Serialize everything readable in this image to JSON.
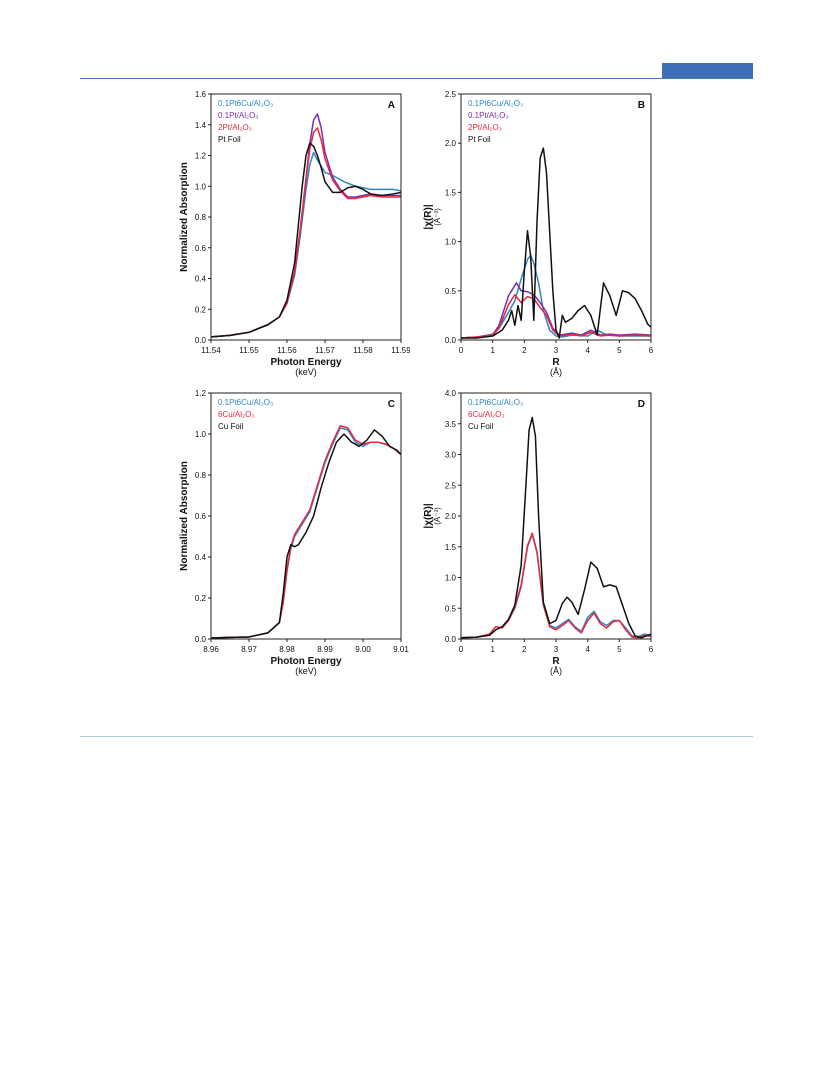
{
  "colors": {
    "pt_cu": "#2f86c8",
    "pt01": "#7a2fa8",
    "pt2": "#e8283a",
    "foil": "#111111",
    "cu6": "#e8283a",
    "accent": "#3f6fb7"
  },
  "chart_data": [
    {
      "id": "A",
      "type": "line",
      "panel_label": "A",
      "xlabel": "Photon Energy",
      "xunit": "(keV)",
      "ylabel": "Normalized Absorption",
      "xlim": [
        11.54,
        11.59
      ],
      "ylim": [
        0,
        1.6
      ],
      "xticks": [
        11.54,
        11.55,
        11.56,
        11.57,
        11.58,
        11.59
      ],
      "yticks": [
        0.0,
        0.2,
        0.4,
        0.6,
        0.8,
        1.0,
        1.2,
        1.4,
        1.6
      ],
      "xtick_labels": [
        "11.54",
        "11.55",
        "11.56",
        "11.57",
        "11.58",
        "11.59"
      ],
      "ytick_labels": [
        "0.0",
        "0.2",
        "0.4",
        "0.6",
        "0.8",
        "1.0",
        "1.2",
        "1.4",
        "1.6"
      ],
      "legend": [
        {
          "text": "0.1Pt6Cu/Al₂O₃",
          "colorKey": "pt_cu"
        },
        {
          "text": "0.1Pt/Al₂O₃",
          "colorKey": "pt01"
        },
        {
          "text": "2Pt/Al₂O₃",
          "colorKey": "pt2"
        },
        {
          "text": "Pt Foil",
          "colorKey": "foil"
        }
      ],
      "series": [
        {
          "name": "0.1Pt6Cu/Al₂O₃",
          "colorKey": "pt_cu",
          "x": [
            11.54,
            11.545,
            11.55,
            11.555,
            11.558,
            11.56,
            11.562,
            11.5635,
            11.565,
            11.566,
            11.567,
            11.568,
            11.57,
            11.572,
            11.575,
            11.578,
            11.58,
            11.582,
            11.585,
            11.588,
            11.59
          ],
          "y": [
            0.02,
            0.03,
            0.05,
            0.1,
            0.15,
            0.24,
            0.42,
            0.68,
            0.98,
            1.14,
            1.22,
            1.17,
            1.09,
            1.07,
            1.03,
            1.0,
            0.99,
            0.98,
            0.98,
            0.98,
            0.97
          ]
        },
        {
          "name": "0.1Pt/Al₂O₃",
          "colorKey": "pt01",
          "x": [
            11.54,
            11.545,
            11.55,
            11.555,
            11.558,
            11.56,
            11.562,
            11.5635,
            11.565,
            11.566,
            11.567,
            11.568,
            11.569,
            11.57,
            11.572,
            11.574,
            11.576,
            11.578,
            11.58,
            11.582,
            11.585,
            11.588,
            11.59
          ],
          "y": [
            0.02,
            0.03,
            0.05,
            0.1,
            0.15,
            0.24,
            0.44,
            0.72,
            1.05,
            1.28,
            1.43,
            1.47,
            1.38,
            1.22,
            1.06,
            0.98,
            0.93,
            0.93,
            0.94,
            0.95,
            0.94,
            0.94,
            0.94
          ]
        },
        {
          "name": "2Pt/Al₂O₃",
          "colorKey": "pt2",
          "x": [
            11.54,
            11.545,
            11.55,
            11.555,
            11.558,
            11.56,
            11.562,
            11.5635,
            11.565,
            11.566,
            11.567,
            11.568,
            11.569,
            11.57,
            11.572,
            11.574,
            11.576,
            11.578,
            11.58,
            11.582,
            11.585,
            11.588,
            11.59
          ],
          "y": [
            0.02,
            0.03,
            0.05,
            0.1,
            0.15,
            0.24,
            0.44,
            0.72,
            1.04,
            1.24,
            1.35,
            1.38,
            1.3,
            1.18,
            1.04,
            0.97,
            0.92,
            0.92,
            0.93,
            0.94,
            0.93,
            0.93,
            0.93
          ]
        },
        {
          "name": "Pt Foil",
          "colorKey": "foil",
          "x": [
            11.54,
            11.545,
            11.55,
            11.555,
            11.558,
            11.56,
            11.562,
            11.563,
            11.564,
            11.565,
            11.566,
            11.567,
            11.568,
            11.569,
            11.57,
            11.572,
            11.574,
            11.576,
            11.578,
            11.58,
            11.582,
            11.585,
            11.588,
            11.59
          ],
          "y": [
            0.02,
            0.03,
            0.05,
            0.1,
            0.15,
            0.26,
            0.5,
            0.75,
            1.0,
            1.2,
            1.28,
            1.26,
            1.2,
            1.12,
            1.03,
            0.96,
            0.96,
            0.99,
            1.0,
            0.98,
            0.95,
            0.94,
            0.95,
            0.96
          ]
        }
      ]
    },
    {
      "id": "B",
      "type": "line",
      "panel_label": "B",
      "xlabel": "R",
      "xunit": "(Å)",
      "ylabel": "|χ(R)|",
      "yunit": "(Å⁻³)",
      "xlim": [
        0,
        6
      ],
      "ylim": [
        0,
        2.5
      ],
      "xticks": [
        0,
        1,
        2,
        3,
        4,
        5,
        6
      ],
      "yticks": [
        0.0,
        0.5,
        1.0,
        1.5,
        2.0,
        2.5
      ],
      "xtick_labels": [
        "0",
        "1",
        "2",
        "3",
        "4",
        "5",
        "6"
      ],
      "ytick_labels": [
        "0.0",
        "0.5",
        "1.0",
        "1.5",
        "2.0",
        "2.5"
      ],
      "legend": [
        {
          "text": "0.1Pt6Cu/Al₂O₃",
          "colorKey": "pt_cu"
        },
        {
          "text": "0.1Pt/Al₂O₃",
          "colorKey": "pt01"
        },
        {
          "text": "2Pt/Al₂O₃",
          "colorKey": "pt2"
        },
        {
          "text": "Pt Foil",
          "colorKey": "foil"
        }
      ],
      "series": [
        {
          "name": "0.1Pt6Cu/Al₂O₃",
          "colorKey": "pt_cu",
          "x": [
            0,
            0.5,
            1.0,
            1.2,
            1.5,
            1.7,
            1.9,
            2.1,
            2.2,
            2.3,
            2.45,
            2.6,
            2.8,
            3.0,
            3.2,
            3.5,
            4.0,
            4.3,
            4.6,
            5.0,
            5.5,
            6.0
          ],
          "y": [
            0.02,
            0.03,
            0.06,
            0.12,
            0.28,
            0.4,
            0.62,
            0.82,
            0.86,
            0.78,
            0.58,
            0.3,
            0.1,
            0.04,
            0.03,
            0.05,
            0.04,
            0.1,
            0.05,
            0.04,
            0.04,
            0.04
          ]
        },
        {
          "name": "0.1Pt/Al₂O₃",
          "colorKey": "pt01",
          "x": [
            0,
            0.5,
            1.0,
            1.2,
            1.5,
            1.75,
            1.9,
            2.1,
            2.3,
            2.5,
            2.7,
            2.9,
            3.1,
            3.3,
            3.5,
            3.8,
            4.1,
            4.4,
            4.7,
            5.0,
            5.5,
            6.0
          ],
          "y": [
            0.02,
            0.03,
            0.05,
            0.15,
            0.45,
            0.58,
            0.5,
            0.49,
            0.46,
            0.38,
            0.28,
            0.12,
            0.05,
            0.06,
            0.07,
            0.05,
            0.1,
            0.05,
            0.06,
            0.05,
            0.06,
            0.05
          ]
        },
        {
          "name": "2Pt/Al₂O₃",
          "colorKey": "pt2",
          "x": [
            0,
            0.5,
            1.0,
            1.2,
            1.5,
            1.7,
            1.9,
            2.1,
            2.3,
            2.5,
            2.7,
            2.9,
            3.1,
            3.3,
            3.5,
            3.8,
            4.1,
            4.4,
            4.7,
            5.0,
            5.5,
            6.0
          ],
          "y": [
            0.02,
            0.03,
            0.05,
            0.12,
            0.36,
            0.46,
            0.38,
            0.44,
            0.42,
            0.33,
            0.25,
            0.1,
            0.04,
            0.05,
            0.06,
            0.04,
            0.08,
            0.04,
            0.05,
            0.04,
            0.05,
            0.04
          ]
        },
        {
          "name": "Pt Foil",
          "colorKey": "foil",
          "x": [
            0,
            0.5,
            1.0,
            1.3,
            1.5,
            1.6,
            1.7,
            1.8,
            1.9,
            2.0,
            2.1,
            2.2,
            2.3,
            2.4,
            2.5,
            2.6,
            2.7,
            2.8,
            2.9,
            3.0,
            3.1,
            3.2,
            3.3,
            3.5,
            3.7,
            3.9,
            4.1,
            4.3,
            4.5,
            4.7,
            4.9,
            5.1,
            5.3,
            5.5,
            5.7,
            5.9,
            6.0
          ],
          "y": [
            0.02,
            0.02,
            0.04,
            0.1,
            0.2,
            0.3,
            0.15,
            0.35,
            0.2,
            0.7,
            1.11,
            0.85,
            0.2,
            1.2,
            1.85,
            1.95,
            1.7,
            1.1,
            0.5,
            0.1,
            0.02,
            0.25,
            0.18,
            0.22,
            0.3,
            0.35,
            0.25,
            0.05,
            0.58,
            0.45,
            0.25,
            0.5,
            0.48,
            0.42,
            0.3,
            0.16,
            0.13
          ]
        }
      ]
    },
    {
      "id": "C",
      "type": "line",
      "panel_label": "C",
      "xlabel": "Photon Energy",
      "xunit": "(keV)",
      "ylabel": "Normalized Absorption",
      "xlim": [
        8.96,
        9.01
      ],
      "ylim": [
        0,
        1.2
      ],
      "xticks": [
        8.96,
        8.97,
        8.98,
        8.99,
        9.0,
        9.01
      ],
      "yticks": [
        0.0,
        0.2,
        0.4,
        0.6,
        0.8,
        1.0,
        1.2
      ],
      "xtick_labels": [
        "8.96",
        "8.97",
        "8.98",
        "8.99",
        "9.00",
        "9.01"
      ],
      "ytick_labels": [
        "0.0",
        "0.2",
        "0.4",
        "0.6",
        "0.8",
        "1.0",
        "1.2"
      ],
      "legend": [
        {
          "text": "0.1Pt6Cu/Al₂O₃",
          "colorKey": "pt_cu"
        },
        {
          "text": "6Cu/Al₂O₃",
          "colorKey": "cu6"
        },
        {
          "text": "Cu Foil",
          "colorKey": "foil"
        }
      ],
      "series": [
        {
          "name": "0.1Pt6Cu/Al₂O₃",
          "colorKey": "pt_cu",
          "x": [
            8.96,
            8.965,
            8.97,
            8.975,
            8.978,
            8.979,
            8.98,
            8.981,
            8.982,
            8.984,
            8.986,
            8.988,
            8.99,
            8.992,
            8.994,
            8.996,
            8.998,
            9.0,
            9.002,
            9.004,
            9.006,
            9.008,
            9.01
          ],
          "y": [
            0.005,
            0.008,
            0.01,
            0.03,
            0.08,
            0.18,
            0.33,
            0.44,
            0.5,
            0.56,
            0.62,
            0.74,
            0.86,
            0.95,
            1.03,
            1.02,
            0.96,
            0.94,
            0.96,
            0.96,
            0.95,
            0.93,
            0.9
          ]
        },
        {
          "name": "6Cu/Al₂O₃",
          "colorKey": "cu6",
          "x": [
            8.96,
            8.965,
            8.97,
            8.975,
            8.978,
            8.979,
            8.98,
            8.981,
            8.982,
            8.984,
            8.986,
            8.988,
            8.99,
            8.992,
            8.994,
            8.996,
            8.998,
            9.0,
            9.002,
            9.004,
            9.006,
            9.008,
            9.01
          ],
          "y": [
            0.005,
            0.008,
            0.01,
            0.03,
            0.08,
            0.18,
            0.34,
            0.45,
            0.51,
            0.57,
            0.63,
            0.75,
            0.87,
            0.96,
            1.04,
            1.03,
            0.97,
            0.95,
            0.96,
            0.96,
            0.95,
            0.93,
            0.9
          ]
        },
        {
          "name": "Cu Foil",
          "colorKey": "foil",
          "x": [
            8.96,
            8.965,
            8.97,
            8.975,
            8.978,
            8.979,
            8.98,
            8.981,
            8.982,
            8.983,
            8.985,
            8.987,
            8.989,
            8.991,
            8.993,
            8.995,
            8.997,
            8.999,
            9.001,
            9.003,
            9.005,
            9.007,
            9.009,
            9.01
          ],
          "y": [
            0.005,
            0.008,
            0.01,
            0.03,
            0.08,
            0.22,
            0.4,
            0.46,
            0.45,
            0.46,
            0.52,
            0.6,
            0.74,
            0.86,
            0.96,
            1.0,
            0.96,
            0.94,
            0.97,
            1.02,
            0.99,
            0.94,
            0.92,
            0.9
          ]
        }
      ]
    },
    {
      "id": "D",
      "type": "line",
      "panel_label": "D",
      "xlabel": "R",
      "xunit": "(Å)",
      "ylabel": "|χ(R)|",
      "yunit": "(Å⁻³)",
      "xlim": [
        0,
        6
      ],
      "ylim": [
        0,
        4.0
      ],
      "xticks": [
        0,
        1,
        2,
        3,
        4,
        5,
        6
      ],
      "yticks": [
        0.0,
        0.5,
        1.0,
        1.5,
        2.0,
        2.5,
        3.0,
        3.5,
        4.0
      ],
      "xtick_labels": [
        "0",
        "1",
        "2",
        "3",
        "4",
        "5",
        "6"
      ],
      "ytick_labels": [
        "0.0",
        "0.5",
        "1.0",
        "1.5",
        "2.0",
        "2.5",
        "3.0",
        "3.5",
        "4.0"
      ],
      "legend": [
        {
          "text": "0.1Pt6Cu/Al₂O₃",
          "colorKey": "pt_cu"
        },
        {
          "text": "6Cu/Al₂O₃",
          "colorKey": "cu6"
        },
        {
          "text": "Cu Foil",
          "colorKey": "foil"
        }
      ],
      "series": [
        {
          "name": "0.1Pt6Cu/Al₂O₃",
          "colorKey": "pt_cu",
          "x": [
            0,
            0.5,
            0.9,
            1.1,
            1.3,
            1.5,
            1.7,
            1.9,
            2.1,
            2.25,
            2.4,
            2.6,
            2.8,
            3.0,
            3.2,
            3.4,
            3.6,
            3.8,
            4.0,
            4.2,
            4.4,
            4.6,
            4.8,
            5.0,
            5.2,
            5.4,
            5.6,
            5.8,
            6.0
          ],
          "y": [
            0.02,
            0.03,
            0.08,
            0.2,
            0.18,
            0.3,
            0.5,
            0.85,
            1.5,
            1.7,
            1.4,
            0.55,
            0.22,
            0.18,
            0.25,
            0.32,
            0.2,
            0.12,
            0.35,
            0.45,
            0.28,
            0.22,
            0.3,
            0.3,
            0.18,
            0.05,
            0.04,
            0.08,
            0.05
          ]
        },
        {
          "name": "6Cu/Al₂O₃",
          "colorKey": "cu6",
          "x": [
            0,
            0.5,
            0.9,
            1.1,
            1.3,
            1.5,
            1.7,
            1.9,
            2.1,
            2.25,
            2.4,
            2.6,
            2.8,
            3.0,
            3.2,
            3.4,
            3.6,
            3.8,
            4.0,
            4.2,
            4.4,
            4.6,
            4.8,
            5.0,
            5.2,
            5.4,
            5.6,
            5.8,
            6.0
          ],
          "y": [
            0.02,
            0.03,
            0.08,
            0.2,
            0.18,
            0.3,
            0.52,
            0.88,
            1.52,
            1.72,
            1.42,
            0.56,
            0.2,
            0.15,
            0.22,
            0.3,
            0.18,
            0.1,
            0.3,
            0.42,
            0.25,
            0.18,
            0.28,
            0.3,
            0.15,
            0.03,
            0.02,
            0.06,
            0.04
          ]
        },
        {
          "name": "Cu Foil",
          "colorKey": "foil",
          "x": [
            0,
            0.5,
            0.9,
            1.1,
            1.3,
            1.5,
            1.7,
            1.9,
            2.05,
            2.15,
            2.25,
            2.35,
            2.45,
            2.6,
            2.8,
            3.0,
            3.2,
            3.35,
            3.5,
            3.7,
            3.9,
            4.1,
            4.3,
            4.5,
            4.7,
            4.9,
            5.1,
            5.3,
            5.5,
            5.7,
            5.9,
            6.0
          ],
          "y": [
            0.02,
            0.03,
            0.06,
            0.15,
            0.2,
            0.32,
            0.55,
            1.2,
            2.5,
            3.4,
            3.6,
            3.3,
            2.0,
            0.6,
            0.25,
            0.3,
            0.58,
            0.68,
            0.6,
            0.4,
            0.8,
            1.25,
            1.15,
            0.85,
            0.88,
            0.85,
            0.55,
            0.25,
            0.05,
            0.02,
            0.06,
            0.08
          ]
        }
      ]
    }
  ]
}
